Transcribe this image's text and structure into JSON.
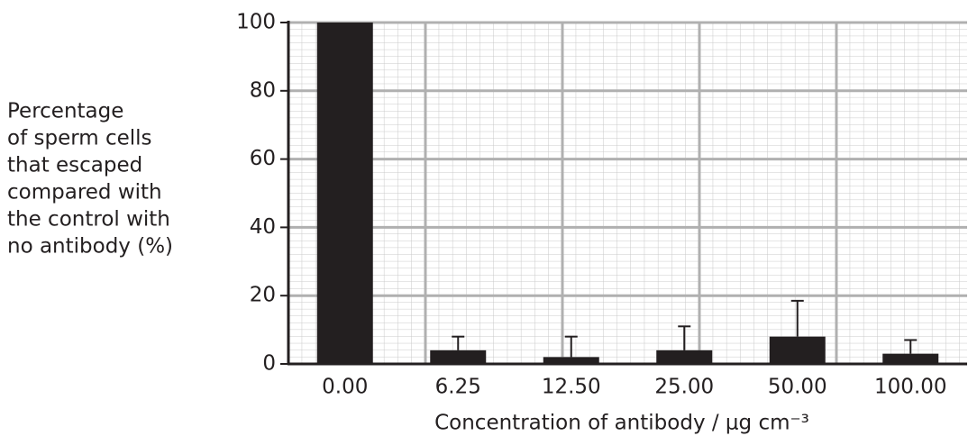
{
  "chart_data": {
    "type": "bar",
    "ylabel": [
      "Percentage",
      "of sperm cells",
      "that escaped",
      "compared with",
      "the control with",
      "no antibody (%)"
    ],
    "xlabel": "Concentration of antibody / μg cm⁻³",
    "categories": [
      "0.00",
      "6.25",
      "12.50",
      "25.00",
      "50.00",
      "100.00"
    ],
    "values": [
      100,
      4,
      2,
      4,
      8,
      3
    ],
    "errors": [
      0,
      4,
      6,
      7,
      10.5,
      4
    ],
    "color": "#231f20",
    "ylim": [
      0,
      100
    ],
    "yticks": [
      0,
      20,
      40,
      60,
      80,
      100
    ],
    "grid": true
  }
}
